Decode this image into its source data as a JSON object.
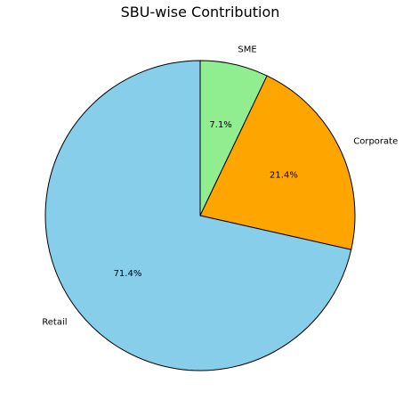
{
  "chart_data": {
    "type": "pie",
    "title": "SBU-wise Contribution",
    "start_angle_deg": 90,
    "direction": "clockwise",
    "edge_color": "#000000",
    "slices": [
      {
        "label": "SME",
        "value": 7.1,
        "pct_label": "7.1%",
        "color": "#90ee90"
      },
      {
        "label": "Corporate",
        "value": 21.4,
        "pct_label": "21.4%",
        "color": "#ffa500"
      },
      {
        "label": "Retail",
        "value": 71.4,
        "pct_label": "71.4%",
        "color": "#87ceeb"
      }
    ]
  }
}
